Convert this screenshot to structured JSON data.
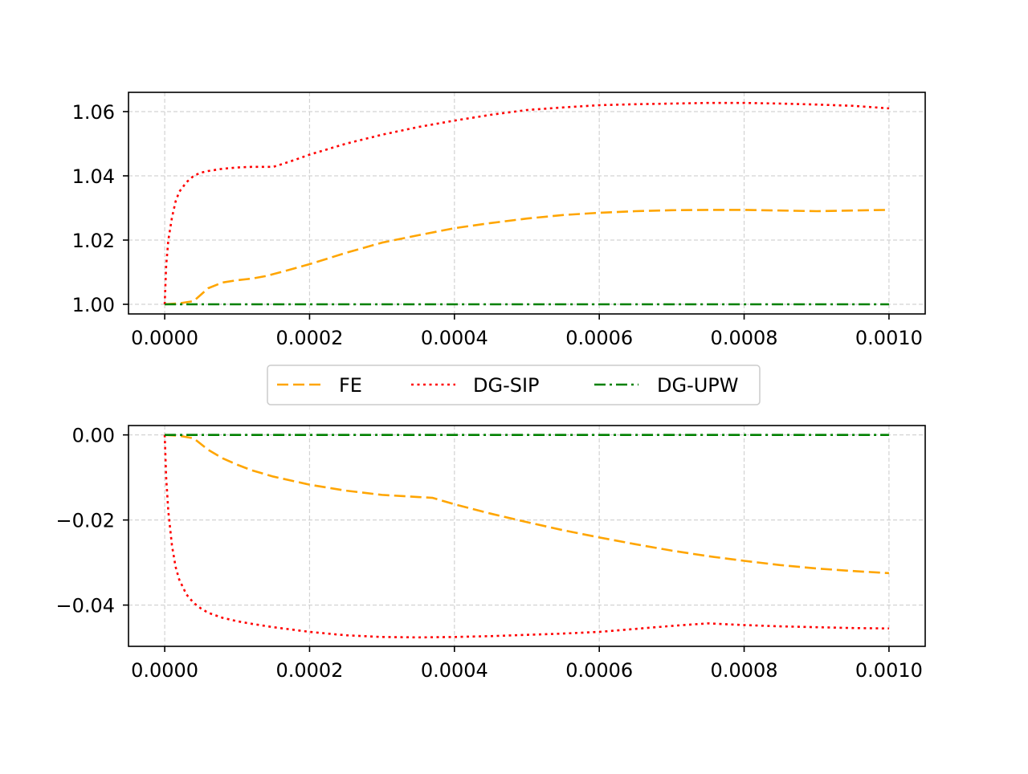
{
  "chart_data": [
    {
      "type": "line",
      "xlim": [
        -5e-05,
        0.00105
      ],
      "ylim": [
        0.997,
        1.066
      ],
      "xticks": [
        0.0,
        0.0002,
        0.0004,
        0.0006,
        0.0008,
        0.001
      ],
      "xtick_labels": [
        "0.0000",
        "0.0002",
        "0.0004",
        "0.0006",
        "0.0008",
        "0.0010"
      ],
      "yticks": [
        1.0,
        1.02,
        1.04,
        1.06
      ],
      "ytick_labels": [
        "1.00",
        "1.02",
        "1.04",
        "1.06"
      ],
      "grid": true,
      "series": [
        {
          "name": "FE",
          "color": "#ffa500",
          "dash": "dashed",
          "x": [
            0,
            2e-05,
            4e-05,
            5e-05,
            6e-05,
            8e-05,
            0.0001,
            0.00012,
            0.00014,
            0.00016,
            0.0002,
            0.00025,
            0.0003,
            0.00035,
            0.0004,
            0.00045,
            0.0005,
            0.00055,
            0.0006,
            0.00065,
            0.0007,
            0.00075,
            0.0008,
            0.00085,
            0.0009,
            0.00095,
            0.001
          ],
          "y": [
            1.0,
            1.0003,
            1.001,
            1.003,
            1.005,
            1.0068,
            1.0075,
            1.008,
            1.0088,
            1.01,
            1.0125,
            1.016,
            1.0192,
            1.0215,
            1.0237,
            1.0253,
            1.0267,
            1.0278,
            1.0285,
            1.029,
            1.0293,
            1.0294,
            1.0294,
            1.0292,
            1.029,
            1.0292,
            1.0294
          ]
        },
        {
          "name": "DG-SIP",
          "color": "#ff0000",
          "dash": "dotted",
          "x": [
            0,
            2e-06,
            5e-06,
            1e-05,
            1.5e-05,
            2e-05,
            3e-05,
            4e-05,
            5e-05,
            6e-05,
            8e-05,
            0.0001,
            0.00012,
            0.00014,
            0.00015,
            0.00016,
            0.00018,
            0.0002,
            0.00025,
            0.0003,
            0.00035,
            0.0004,
            0.00045,
            0.0005,
            0.00055,
            0.0006,
            0.00065,
            0.0007,
            0.00075,
            0.0008,
            0.00085,
            0.0009,
            0.00095,
            0.001
          ],
          "y": [
            1.0,
            1.012,
            1.02,
            1.027,
            1.032,
            1.035,
            1.038,
            1.04,
            1.041,
            1.0415,
            1.0422,
            1.0426,
            1.0428,
            1.0428,
            1.0428,
            1.0435,
            1.045,
            1.0466,
            1.05,
            1.0528,
            1.0552,
            1.0572,
            1.059,
            1.0605,
            1.0613,
            1.062,
            1.0623,
            1.0625,
            1.0627,
            1.0627,
            1.0625,
            1.0622,
            1.0618,
            1.061
          ]
        },
        {
          "name": "DG-UPW",
          "color": "#008000",
          "dash": "dashdot",
          "x": [
            0,
            0.001
          ],
          "y": [
            1.0,
            1.0
          ]
        }
      ]
    },
    {
      "type": "line",
      "xlim": [
        -5e-05,
        0.00105
      ],
      "ylim": [
        -0.0497,
        0.0022
      ],
      "xticks": [
        0.0,
        0.0002,
        0.0004,
        0.0006,
        0.0008,
        0.001
      ],
      "xtick_labels": [
        "0.0000",
        "0.0002",
        "0.0004",
        "0.0006",
        "0.0008",
        "0.0010"
      ],
      "yticks": [
        0.0,
        -0.02,
        -0.04
      ],
      "ytick_labels": [
        "0.00",
        "−0.02",
        "−0.04"
      ],
      "grid": true,
      "series": [
        {
          "name": "FE",
          "color": "#ffa500",
          "dash": "dashed",
          "x": [
            0,
            2e-05,
            4e-05,
            6e-05,
            8e-05,
            0.0001,
            0.00012,
            0.00015,
            0.0002,
            0.00025,
            0.0003,
            0.00035,
            0.00037,
            0.0004,
            0.00045,
            0.0005,
            0.00055,
            0.0006,
            0.00065,
            0.0007,
            0.00075,
            0.0008,
            0.00085,
            0.0009,
            0.00095,
            0.001
          ],
          "y": [
            0.0,
            -0.0002,
            -0.0008,
            -0.0035,
            -0.0055,
            -0.007,
            -0.0083,
            -0.0098,
            -0.0117,
            -0.0131,
            -0.0141,
            -0.0146,
            -0.0148,
            -0.0163,
            -0.0185,
            -0.0205,
            -0.0224,
            -0.0241,
            -0.0257,
            -0.0272,
            -0.0285,
            -0.0296,
            -0.0306,
            -0.0314,
            -0.032,
            -0.0325
          ]
        },
        {
          "name": "DG-SIP",
          "color": "#ff0000",
          "dash": "dotted",
          "x": [
            0,
            2e-06,
            5e-06,
            1e-05,
            1.5e-05,
            2e-05,
            3e-05,
            4e-05,
            5e-05,
            6e-05,
            8e-05,
            0.0001,
            0.00012,
            0.00015,
            0.0002,
            0.00025,
            0.0003,
            0.00035,
            0.0004,
            0.00045,
            0.0005,
            0.00055,
            0.0006,
            0.00065,
            0.0007,
            0.00075,
            0.0008,
            0.00085,
            0.0009,
            0.00095,
            0.001
          ],
          "y": [
            0.0,
            -0.01,
            -0.018,
            -0.026,
            -0.031,
            -0.034,
            -0.0375,
            -0.0395,
            -0.0408,
            -0.0418,
            -0.043,
            -0.0438,
            -0.0444,
            -0.0452,
            -0.0463,
            -0.0471,
            -0.0475,
            -0.0476,
            -0.0475,
            -0.0473,
            -0.047,
            -0.0467,
            -0.0463,
            -0.0456,
            -0.0449,
            -0.0443,
            -0.0447,
            -0.045,
            -0.0452,
            -0.0454,
            -0.0455
          ]
        },
        {
          "name": "DG-UPW",
          "color": "#008000",
          "dash": "dashdot",
          "x": [
            0,
            0.001
          ],
          "y": [
            0.0,
            0.0
          ]
        }
      ]
    }
  ],
  "legend": {
    "placement": "between-panels-center",
    "entries": [
      {
        "label": "FE",
        "color": "#ffa500",
        "dash": "dashed"
      },
      {
        "label": "DG-SIP",
        "color": "#ff0000",
        "dash": "dotted"
      },
      {
        "label": "DG-UPW",
        "color": "#008000",
        "dash": "dashdot"
      }
    ]
  }
}
